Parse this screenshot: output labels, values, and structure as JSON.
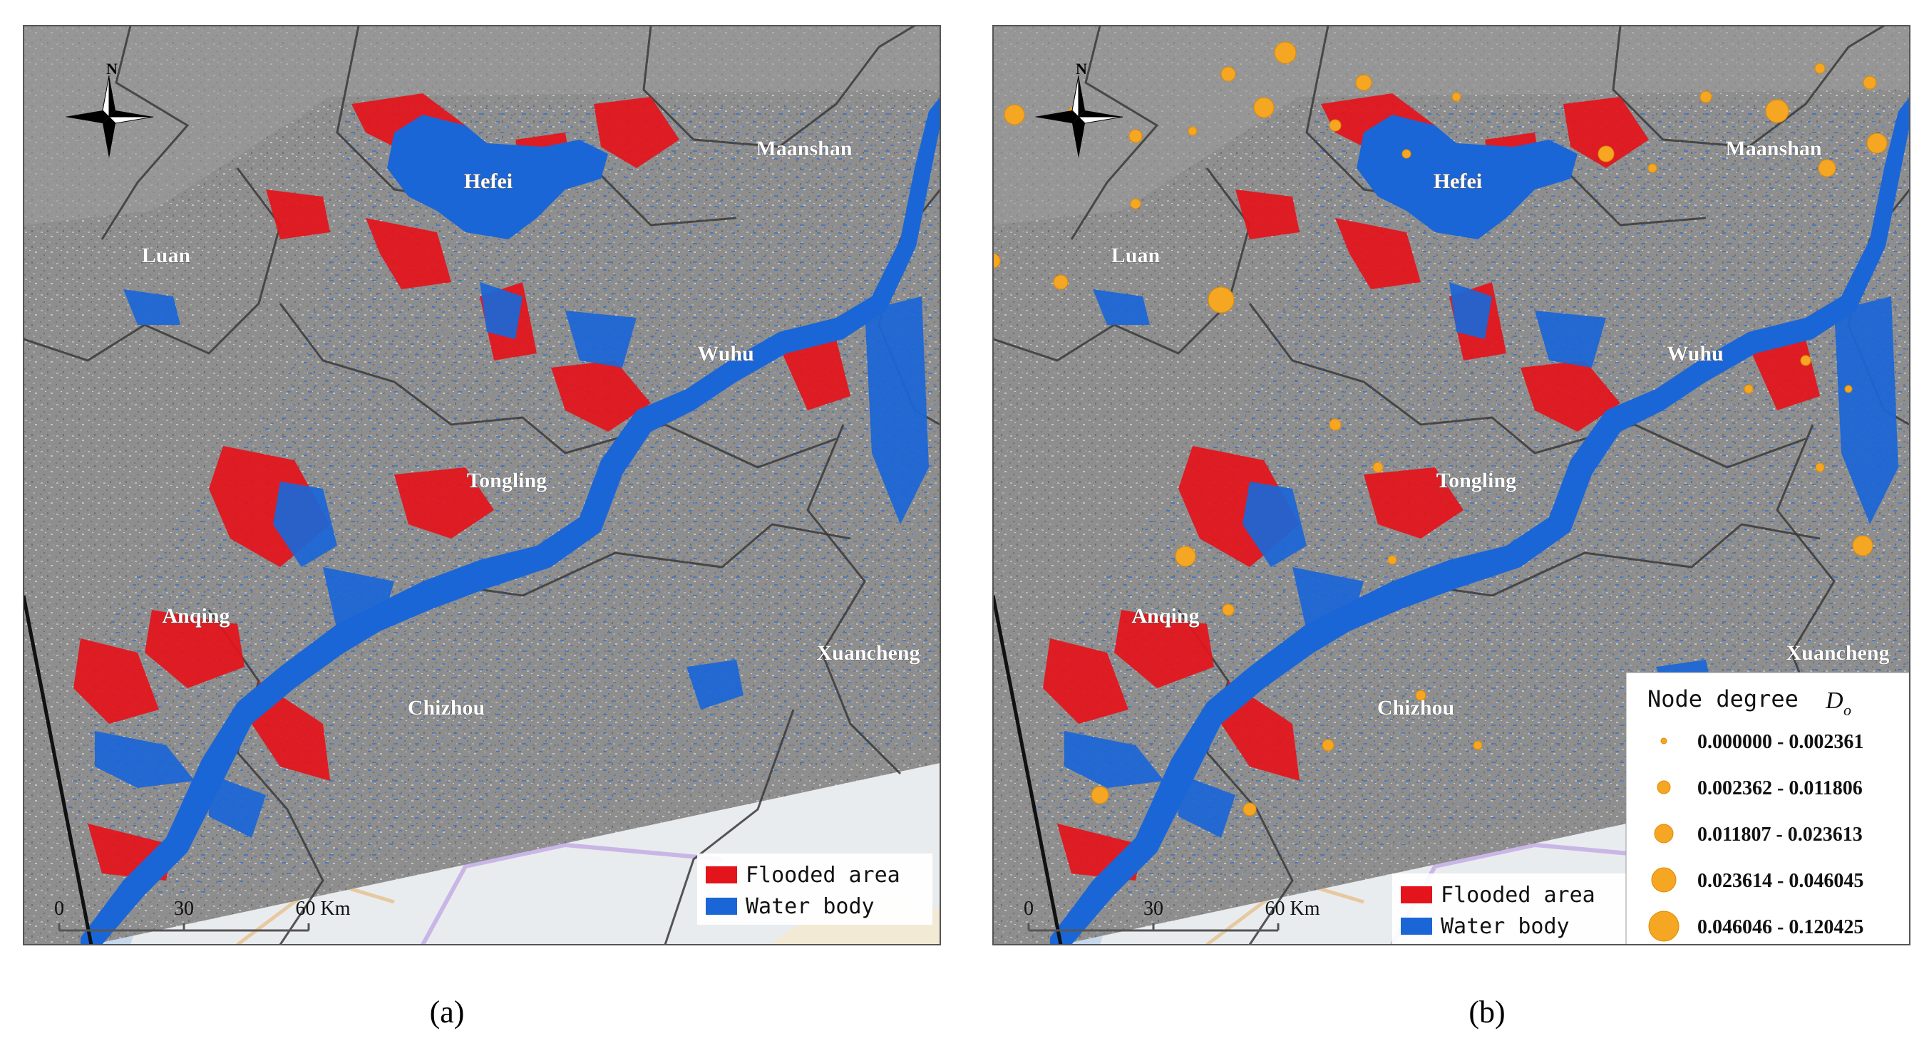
{
  "panels": [
    {
      "id": "a",
      "caption": "(a)",
      "cities": [
        "Hefei",
        "Maanshan",
        "Luan",
        "Wuhu",
        "Tongling",
        "Anqing",
        "Xuancheng",
        "Chizhou"
      ],
      "compass_label": "N",
      "scale_labels": [
        "0",
        "30",
        "60 Km"
      ],
      "legend": [
        {
          "label": "Flooded area",
          "color": "#e3141b"
        },
        {
          "label": "Water body",
          "color": "#1b66d6"
        }
      ]
    },
    {
      "id": "b",
      "caption": "(b)",
      "cities": [
        "Hefei",
        "Maanshan",
        "Luan",
        "Wuhu",
        "Tongling",
        "Anqing",
        "Xuancheng",
        "Chizhou"
      ],
      "compass_label": "N",
      "scale_labels": [
        "0",
        "30",
        "60 Km"
      ],
      "legend": [
        {
          "label": "Flooded area",
          "color": "#e3141b"
        },
        {
          "label": "Water body",
          "color": "#1b66d6"
        }
      ],
      "node_legend": {
        "title": "Node degree",
        "symbol": "D",
        "subscript": "o",
        "classes": [
          "0.000000 - 0.002361",
          "0.002362 - 0.011806",
          "0.011807 - 0.023613",
          "0.023614 - 0.046045",
          "0.046046 - 0.120425"
        ],
        "color": "#f5a623"
      }
    }
  ],
  "colors": {
    "terrain": "#8b8b8b",
    "boundary": "#3a3a3a",
    "flood": "#e3141b",
    "water": "#1b66d6",
    "basemap": "#e9ecee",
    "node": "#f5a623"
  }
}
